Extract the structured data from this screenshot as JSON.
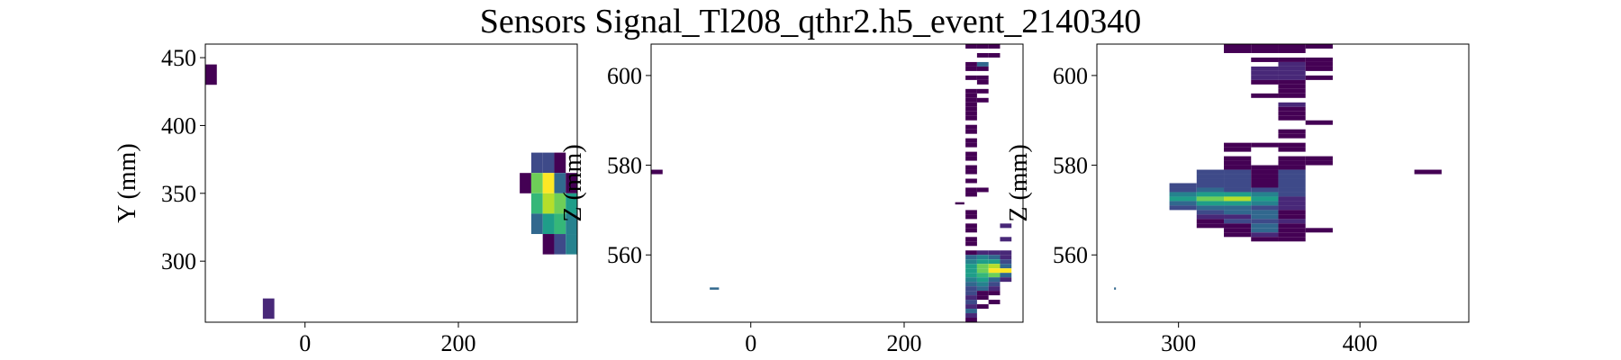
{
  "title": "Sensors Signal_Tl208_qthr2.h5_event_2140340",
  "colors": {
    "viridis": [
      "#440154",
      "#482878",
      "#3e4a89",
      "#31688e",
      "#26828e",
      "#1f9e89",
      "#35b779",
      "#6ece58",
      "#b5de2b",
      "#fde725"
    ]
  },
  "chart_data": [
    {
      "type": "heatmap",
      "xlabel": "",
      "ylabel": "Y (mm)",
      "xlim": [
        -130,
        355
      ],
      "ylim": [
        255,
        460
      ],
      "xticks": [
        0,
        200
      ],
      "yticks": [
        300,
        350,
        400,
        450
      ],
      "cell_w": 15,
      "cell_h": 15,
      "cells": [
        [
          -122.5,
          437.5,
          0.05
        ],
        [
          -47.5,
          265,
          0.15
        ],
        [
          302.5,
          372.5,
          0.2
        ],
        [
          317.5,
          372.5,
          0.2
        ],
        [
          332.5,
          372.5,
          0.05
        ],
        [
          287.5,
          357.5,
          0.05
        ],
        [
          302.5,
          357.5,
          0.75
        ],
        [
          317.5,
          357.5,
          1.0
        ],
        [
          332.5,
          357.5,
          0.3
        ],
        [
          347.5,
          357.5,
          0.05
        ],
        [
          302.5,
          342.5,
          0.7
        ],
        [
          317.5,
          342.5,
          0.9
        ],
        [
          332.5,
          342.5,
          0.75
        ],
        [
          347.5,
          342.5,
          0.6
        ],
        [
          302.5,
          327.5,
          0.35
        ],
        [
          317.5,
          327.5,
          0.55
        ],
        [
          332.5,
          327.5,
          0.65
        ],
        [
          347.5,
          327.5,
          0.45
        ],
        [
          317.5,
          312.5,
          0.05
        ],
        [
          332.5,
          312.5,
          0.25
        ],
        [
          347.5,
          312.5,
          0.4
        ]
      ]
    },
    {
      "type": "heatmap",
      "xlabel": "",
      "ylabel": "Z (mm)",
      "xlim": [
        -130,
        355
      ],
      "ylim": [
        545,
        607
      ],
      "xticks": [
        0,
        200
      ],
      "yticks": [
        560,
        580,
        600
      ],
      "cell_w": 15,
      "cell_h": 1,
      "cells": [
        [
          -122.5,
          578.5,
          0.05
        ],
        [
          -47.5,
          552.5,
          0.35,
          12,
          0.5
        ],
        [
          287.5,
          606.5,
          0.05
        ],
        [
          302.5,
          606.5,
          0.05
        ],
        [
          317.5,
          606.5,
          0.05
        ],
        [
          302.5,
          604.5,
          0.05
        ],
        [
          317.5,
          604.5,
          0.05
        ],
        [
          287.5,
          602.5,
          0.05
        ],
        [
          302.5,
          602.5,
          0.3
        ],
        [
          287.5,
          601.5,
          0.05
        ],
        [
          302.5,
          601.5,
          0.05
        ],
        [
          287.5,
          599.5,
          0.05
        ],
        [
          302.5,
          599.5,
          0.05
        ],
        [
          302.5,
          598.5,
          0.05
        ],
        [
          287.5,
          596.5,
          0.05
        ],
        [
          302.5,
          596.5,
          0.05
        ],
        [
          287.5,
          595.5,
          0.05
        ],
        [
          287.5,
          594.5,
          0.05
        ],
        [
          302.5,
          594.5,
          0.05
        ],
        [
          287.5,
          593.5,
          0.05
        ],
        [
          287.5,
          592.5,
          0.05
        ],
        [
          287.5,
          591.5,
          0.05
        ],
        [
          287.5,
          590.5,
          0.05
        ],
        [
          287.5,
          588.5,
          0.05
        ],
        [
          287.5,
          587.5,
          0.05
        ],
        [
          287.5,
          585.5,
          0.05
        ],
        [
          287.5,
          584.5,
          0.05
        ],
        [
          287.5,
          582.5,
          0.05
        ],
        [
          287.5,
          581.5,
          0.05
        ],
        [
          287.5,
          579.5,
          0.05
        ],
        [
          287.5,
          578.5,
          0.05
        ],
        [
          287.5,
          576.5,
          0.05
        ],
        [
          287.5,
          574.5,
          0.05
        ],
        [
          302.5,
          574.5,
          0.05
        ],
        [
          287.5,
          573.5,
          0.05
        ],
        [
          272.5,
          571.5,
          0.05,
          12,
          0.5
        ],
        [
          287.5,
          569.5,
          0.05
        ],
        [
          287.5,
          568.5,
          0.05
        ],
        [
          287.5,
          566.5,
          0.05
        ],
        [
          287.5,
          565.5,
          0.05
        ],
        [
          332.5,
          566.5,
          0.15
        ],
        [
          287.5,
          563.5,
          0.05
        ],
        [
          287.5,
          562.5,
          0.05
        ],
        [
          332.5,
          563.5,
          0.15
        ],
        [
          287.5,
          560.5,
          0.05
        ],
        [
          302.5,
          560.5,
          0.15
        ],
        [
          317.5,
          560.5,
          0.15
        ],
        [
          332.5,
          560.5,
          0.15
        ],
        [
          287.5,
          559.5,
          0.3
        ],
        [
          302.5,
          559.5,
          0.45
        ],
        [
          317.5,
          559.5,
          0.3
        ],
        [
          332.5,
          559.5,
          0.15
        ],
        [
          287.5,
          558.5,
          0.4
        ],
        [
          302.5,
          558.5,
          0.6
        ],
        [
          317.5,
          558.5,
          0.5
        ],
        [
          332.5,
          558.5,
          0.2
        ],
        [
          287.5,
          557.5,
          0.5
        ],
        [
          302.5,
          557.5,
          0.75
        ],
        [
          317.5,
          557.5,
          0.85
        ],
        [
          332.5,
          557.5,
          0.35
        ],
        [
          287.5,
          556.5,
          0.6
        ],
        [
          302.5,
          556.5,
          0.8
        ],
        [
          317.5,
          556.5,
          0.95
        ],
        [
          332.5,
          556.5,
          1.0
        ],
        [
          287.5,
          555.5,
          0.55
        ],
        [
          302.5,
          555.5,
          0.7
        ],
        [
          317.5,
          555.5,
          0.75
        ],
        [
          332.5,
          555.5,
          0.3
        ],
        [
          287.5,
          554.5,
          0.45
        ],
        [
          302.5,
          554.5,
          0.6
        ],
        [
          317.5,
          554.5,
          0.35
        ],
        [
          332.5,
          554.5,
          0.15
        ],
        [
          287.5,
          553.5,
          0.3
        ],
        [
          302.5,
          553.5,
          0.45
        ],
        [
          317.5,
          553.5,
          0.2
        ],
        [
          287.5,
          552.5,
          0.25
        ],
        [
          302.5,
          552.5,
          0.3
        ],
        [
          317.5,
          552.5,
          0.15
        ],
        [
          287.5,
          551.5,
          0.2
        ],
        [
          302.5,
          551.5,
          0.05
        ],
        [
          317.5,
          551.5,
          0.05
        ],
        [
          287.5,
          550.5,
          0.15
        ],
        [
          302.5,
          550.5,
          0.05
        ],
        [
          287.5,
          549.5,
          0.2
        ],
        [
          317.5,
          549.5,
          0.05
        ],
        [
          287.5,
          548.5,
          0.15
        ],
        [
          302.5,
          548.5,
          0.05
        ],
        [
          287.5,
          547.5,
          0.35
        ],
        [
          287.5,
          546.5,
          0.15
        ],
        [
          287.5,
          545.5,
          0.05
        ]
      ]
    },
    {
      "type": "heatmap",
      "xlabel": "",
      "ylabel": "Z (mm)",
      "xlim": [
        255,
        460
      ],
      "ylim": [
        545,
        607
      ],
      "xticks": [
        300,
        400
      ],
      "yticks": [
        560,
        580,
        600
      ],
      "cell_w": 15,
      "cell_h": 1,
      "cells": [
        [
          265,
          552.5,
          0.35,
          1,
          0.5
        ],
        [
          437.5,
          578.5,
          0.05
        ],
        [
          332.5,
          606.5,
          0.05
        ],
        [
          347.5,
          606.5,
          0.05
        ],
        [
          362.5,
          606.5,
          0.05
        ],
        [
          377.5,
          606.5,
          0.05
        ],
        [
          332.5,
          605.5,
          0.05
        ],
        [
          347.5,
          605.5,
          0.05
        ],
        [
          362.5,
          605.5,
          0.05
        ],
        [
          347.5,
          603.5,
          0.05
        ],
        [
          362.5,
          603.5,
          0.05
        ],
        [
          377.5,
          603.5,
          0.05
        ],
        [
          362.5,
          602.5,
          0.15
        ],
        [
          377.5,
          602.5,
          0.05
        ],
        [
          347.5,
          601.5,
          0.15
        ],
        [
          362.5,
          601.5,
          0.15
        ],
        [
          377.5,
          601.5,
          0.05
        ],
        [
          347.5,
          600.5,
          0.15
        ],
        [
          362.5,
          600.5,
          0.15
        ],
        [
          347.5,
          599.5,
          0.15
        ],
        [
          362.5,
          599.5,
          0.15
        ],
        [
          377.5,
          599.5,
          0.05
        ],
        [
          347.5,
          598.5,
          0.05
        ],
        [
          362.5,
          598.5,
          0.05
        ],
        [
          362.5,
          597.5,
          0.05
        ],
        [
          362.5,
          596.5,
          0.05
        ],
        [
          347.5,
          595.5,
          0.05
        ],
        [
          362.5,
          595.5,
          0.05
        ],
        [
          362.5,
          593.5,
          0.15
        ],
        [
          362.5,
          592.5,
          0.05
        ],
        [
          362.5,
          591.5,
          0.05
        ],
        [
          362.5,
          590.5,
          0.05
        ],
        [
          377.5,
          589.5,
          0.05
        ],
        [
          362.5,
          587.5,
          0.05
        ],
        [
          362.5,
          586.5,
          0.05
        ],
        [
          332.5,
          584.5,
          0.05
        ],
        [
          347.5,
          584.5,
          0.05
        ],
        [
          362.5,
          584.5,
          0.05
        ],
        [
          332.5,
          583.5,
          0.05
        ],
        [
          362.5,
          583.5,
          0.05
        ],
        [
          332.5,
          581.5,
          0.05
        ],
        [
          362.5,
          581.5,
          0.05
        ],
        [
          377.5,
          581.5,
          0.05
        ],
        [
          332.5,
          580.5,
          0.05
        ],
        [
          362.5,
          580.5,
          0.05
        ],
        [
          377.5,
          580.5,
          0.05
        ],
        [
          332.5,
          579.5,
          0.05
        ],
        [
          347.5,
          579.5,
          0.05
        ],
        [
          362.5,
          579.5,
          0.05
        ],
        [
          317.5,
          578.5,
          0.2
        ],
        [
          332.5,
          578.5,
          0.2
        ],
        [
          347.5,
          578.5,
          0.05
        ],
        [
          362.5,
          578.5,
          0.2
        ],
        [
          317.5,
          577.5,
          0.2
        ],
        [
          332.5,
          577.5,
          0.2
        ],
        [
          347.5,
          577.5,
          0.05
        ],
        [
          362.5,
          577.5,
          0.2
        ],
        [
          317.5,
          576.5,
          0.2
        ],
        [
          332.5,
          576.5,
          0.2
        ],
        [
          347.5,
          576.5,
          0.05
        ],
        [
          362.5,
          576.5,
          0.2
        ],
        [
          302.5,
          575.5,
          0.2
        ],
        [
          317.5,
          575.5,
          0.2
        ],
        [
          332.5,
          575.5,
          0.2
        ],
        [
          347.5,
          575.5,
          0.05
        ],
        [
          362.5,
          575.5,
          0.2
        ],
        [
          302.5,
          574.5,
          0.25
        ],
        [
          317.5,
          574.5,
          0.3
        ],
        [
          332.5,
          574.5,
          0.2
        ],
        [
          347.5,
          574.5,
          0.25
        ],
        [
          362.5,
          574.5,
          0.2
        ],
        [
          302.5,
          573.5,
          0.4
        ],
        [
          317.5,
          573.5,
          0.55
        ],
        [
          332.5,
          573.5,
          0.6
        ],
        [
          347.5,
          573.5,
          0.4
        ],
        [
          362.5,
          573.5,
          0.2
        ],
        [
          302.5,
          572.5,
          0.55
        ],
        [
          317.5,
          572.5,
          0.75
        ],
        [
          332.5,
          572.5,
          0.85
        ],
        [
          347.5,
          572.5,
          0.55
        ],
        [
          362.5,
          572.5,
          0.15
        ],
        [
          302.5,
          571.5,
          0.35
        ],
        [
          317.5,
          571.5,
          0.55
        ],
        [
          332.5,
          571.5,
          0.6
        ],
        [
          347.5,
          571.5,
          0.4
        ],
        [
          362.5,
          571.5,
          0.15
        ],
        [
          302.5,
          570.5,
          0.2
        ],
        [
          317.5,
          570.5,
          0.35
        ],
        [
          332.5,
          570.5,
          0.3
        ],
        [
          347.5,
          570.5,
          0.25
        ],
        [
          362.5,
          570.5,
          0.15
        ],
        [
          317.5,
          569.5,
          0.25
        ],
        [
          332.5,
          569.5,
          0.3
        ],
        [
          347.5,
          569.5,
          0.3
        ],
        [
          362.5,
          569.5,
          0.05
        ],
        [
          317.5,
          568.5,
          0.15
        ],
        [
          332.5,
          568.5,
          0.15
        ],
        [
          347.5,
          568.5,
          0.3
        ],
        [
          362.5,
          568.5,
          0.05
        ],
        [
          317.5,
          567.5,
          0.05
        ],
        [
          332.5,
          567.5,
          0.2
        ],
        [
          347.5,
          567.5,
          0.25
        ],
        [
          362.5,
          567.5,
          0.15
        ],
        [
          317.5,
          566.5,
          0.05
        ],
        [
          332.5,
          566.5,
          0.05
        ],
        [
          347.5,
          566.5,
          0.35
        ],
        [
          362.5,
          566.5,
          0.05
        ],
        [
          332.5,
          565.5,
          0.05
        ],
        [
          347.5,
          565.5,
          0.3
        ],
        [
          362.5,
          565.5,
          0.05
        ],
        [
          377.5,
          565.5,
          0.05
        ],
        [
          332.5,
          564.5,
          0.05
        ],
        [
          347.5,
          564.5,
          0.15
        ],
        [
          362.5,
          564.5,
          0.05
        ],
        [
          347.5,
          563.5,
          0.05
        ],
        [
          362.5,
          563.5,
          0.05
        ]
      ]
    }
  ]
}
